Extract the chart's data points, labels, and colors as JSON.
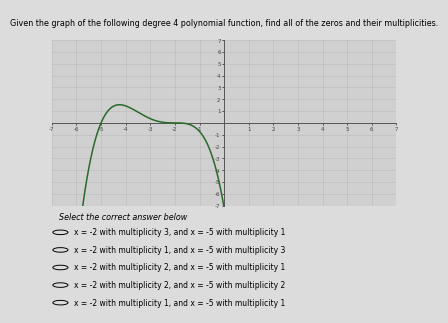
{
  "title": "Given the graph of the following degree 4 polynomial function, find all of the zeros and their multiplicities.",
  "subtitle": "Select the correct answer below",
  "xlim": [
    -7,
    7
  ],
  "ylim": [
    -7,
    7
  ],
  "xticks": [
    -7,
    -6,
    -5,
    -4,
    -3,
    -2,
    -1,
    1,
    2,
    3,
    4,
    5,
    6,
    7
  ],
  "yticks": [
    -7,
    -6,
    -5,
    -4,
    -3,
    -2,
    -1,
    1,
    2,
    3,
    4,
    5,
    6,
    7
  ],
  "curve_color": "#2a6a2a",
  "bg_color": "#dcdcdc",
  "plot_bg": "#d0d0d0",
  "grid_color": "#bbbbbb",
  "zero1": -5,
  "mult1": 1,
  "zero2": -2,
  "mult2": 3,
  "scale": 0.18,
  "options": [
    "x = -2 with multiplicity 3, and x = -5 with multiplicity 1",
    "x = -2 with multiplicity 1, and x = -5 with multiplicity 3",
    "x = -2 with multiplicity 2, and x = -5 with multiplicity 1",
    "x = -2 with multiplicity 2, and x = -5 with multiplicity 2",
    "x = -2 with multiplicity 1, and x = -5 with multiplicity 1"
  ],
  "title_fontsize": 5.8,
  "option_fontsize": 5.5,
  "subtitle_fontsize": 5.8
}
